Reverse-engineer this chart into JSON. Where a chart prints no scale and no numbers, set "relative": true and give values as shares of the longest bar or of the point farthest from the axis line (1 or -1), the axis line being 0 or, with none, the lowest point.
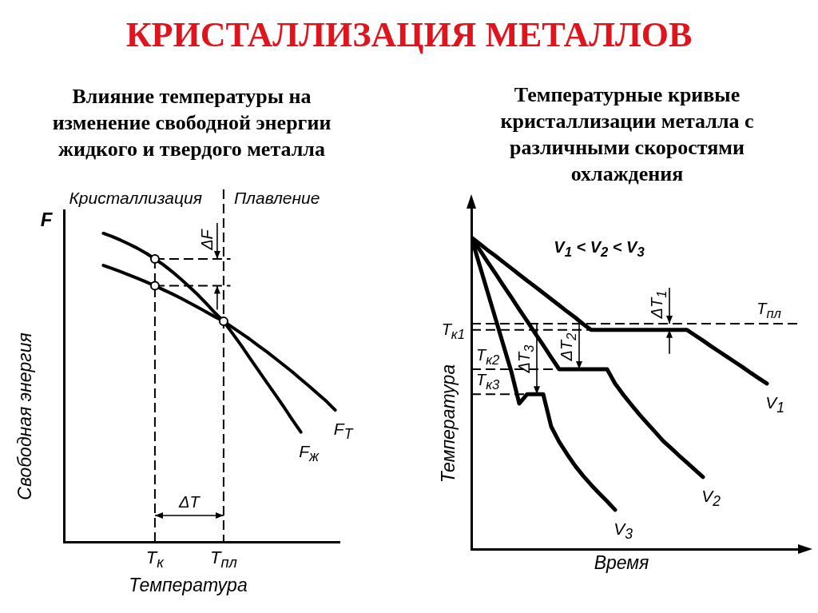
{
  "chart_data": [
    {
      "type": "other",
      "title": "КРИСТАЛЛИЗАЦИЯ МЕТАЛЛОВ"
    },
    {
      "type": "line",
      "title": "Влияние температуры на изменение свободной энергии жидкого и твердого металла",
      "xlabel": "Температура",
      "ylabel": "Свободная энергия",
      "relative": true,
      "categories": [
        null,
        null,
        null,
        null,
        null,
        null,
        "T$_{к}$",
        null,
        null,
        null,
        null,
        null,
        null,
        null,
        "T$_{пл}$",
        null,
        null,
        null,
        null,
        null,
        null,
        null,
        null,
        null,
        null,
        null,
        null,
        null
      ],
      "series": [
        {
          "name": "F$_{ж}$",
          "color": "#000000",
          "values": [
            1,
            0.99,
            0.978,
            0.965,
            0.951,
            0.935,
            0.917,
            0.898,
            0.876,
            0.852,
            0.827,
            0.801,
            0.772,
            0.742,
            0.715,
            0.677,
            0.639,
            0.598,
            0.558,
            0.518,
            0.478,
            0.438,
            0.396,
            0.356,
            null,
            null,
            null,
            null
          ]
        },
        {
          "name": "F$_{Т}$",
          "color": "#000000",
          "values": [
            0.896,
            0.886,
            0.876,
            0.865,
            0.854,
            0.842,
            0.83,
            0.817,
            0.804,
            0.79,
            0.775,
            0.76,
            0.745,
            0.729,
            0.715,
            0.696,
            0.677,
            0.658,
            0.637,
            0.617,
            0.595,
            0.573,
            0.551,
            0.527,
            0.504,
            0.479,
            0.455,
            0.427
          ]
        },
        {
          "type": "scatter",
          "x": [
            "T$_{к}$",
            "T$_{к}$",
            "T$_{пл}$"
          ],
          "values": [
            0.917,
            0.83,
            0.715
          ],
          "color": "#000000",
          "marker": "circle"
        }
      ],
      "ref_lines": [
        {
          "axis": "x",
          "value": "T$_{к}$",
          "line_style": "dashed",
          "color": "#000000"
        },
        {
          "axis": "x",
          "value": "T$_{пл}$",
          "line_style": "dashed",
          "color": "#000000"
        },
        {
          "axis": "y",
          "value": 0.917,
          "line_style": "dashed",
          "color": "#000000"
        },
        {
          "axis": "y",
          "value": 0.83,
          "line_style": "dashed",
          "color": "#000000"
        }
      ],
      "annotations": [
        "F",
        "Кристаллизация",
        "Плавление",
        "ΔF",
        "ΔT"
      ]
    },
    {
      "type": "line",
      "title": "Температурные кривые кристаллизации металла с различными скоростями охлаждения",
      "xlabel": "Время",
      "ylabel": "Температура",
      "relative": true,
      "categories": [
        null,
        null,
        null,
        null,
        null,
        null,
        null,
        null,
        null,
        null,
        null,
        null,
        null,
        null,
        null,
        null,
        null,
        null,
        null,
        null,
        null,
        null,
        null,
        null,
        null,
        null,
        null,
        null,
        null,
        null,
        null,
        null,
        null,
        null,
        null,
        null,
        null,
        null,
        null,
        null,
        null,
        null
      ],
      "series": [
        {
          "name": "V$_{1}$",
          "color": "#000000",
          "values": [
            1,
            0.98,
            0.96,
            0.941,
            0.921,
            0.901,
            0.881,
            0.861,
            0.842,
            0.822,
            0.802,
            0.782,
            0.762,
            0.743,
            0.722,
            0.703,
            0.703,
            0.703,
            0.703,
            0.703,
            0.703,
            0.703,
            0.703,
            0.703,
            0.703,
            0.703,
            0.703,
            0.703,
            0.686,
            0.669,
            0.651,
            0.634,
            0.617,
            0.6,
            0.583,
            0.565,
            0.548,
            0.531,
            null,
            null,
            null,
            null
          ]
        },
        {
          "name": "V$_{2}$",
          "color": "#000000",
          "values": [
            1,
            0.962,
            0.923,
            0.885,
            0.846,
            0.808,
            0.769,
            0.731,
            0.692,
            0.654,
            0.615,
            0.577,
            0.577,
            0.577,
            0.577,
            0.577,
            0.577,
            0.577,
            0.531,
            0.496,
            0.464,
            0.433,
            0.404,
            0.376,
            0.347,
            0.324,
            0.3,
            0.277,
            0.254,
            0.231,
            null,
            null,
            null,
            null,
            null,
            null,
            null,
            null,
            null,
            null,
            null,
            null
          ]
        },
        {
          "name": "V$_{3}$",
          "color": "#000000",
          "values": [
            1,
            0.914,
            0.828,
            0.742,
            0.656,
            0.57,
            0.467,
            0.497,
            0.497,
            0.497,
            0.393,
            0.344,
            0.304,
            0.267,
            0.235,
            0.206,
            0.179,
            0.153,
            0.126,
            null,
            null,
            null,
            null,
            null,
            null,
            null,
            null,
            null,
            null,
            null,
            null,
            null,
            null,
            null,
            null,
            null,
            null,
            null,
            null,
            null,
            null,
            null
          ]
        }
      ],
      "ref_lines": [
        {
          "axis": "y",
          "value": 0.723,
          "label": "T$_{пл}$",
          "line_style": "dashed",
          "color": "#000000"
        },
        {
          "axis": "y",
          "value": 0.703,
          "label": "T$_{к1}$",
          "line_style": "dashed",
          "color": "#000000"
        },
        {
          "axis": "y",
          "value": 0.577,
          "label": "T$_{к2}$",
          "line_style": "dashed",
          "color": "#000000"
        },
        {
          "axis": "y",
          "value": 0.497,
          "label": "T$_{к3}$",
          "line_style": "dashed",
          "color": "#000000"
        }
      ],
      "annotations": [
        "V$_{1}$ < V$_{2}$ < V$_{3}$",
        "ΔT$_{1}$",
        "ΔT$_{2}$",
        "ΔT$_{3}$"
      ]
    }
  ]
}
